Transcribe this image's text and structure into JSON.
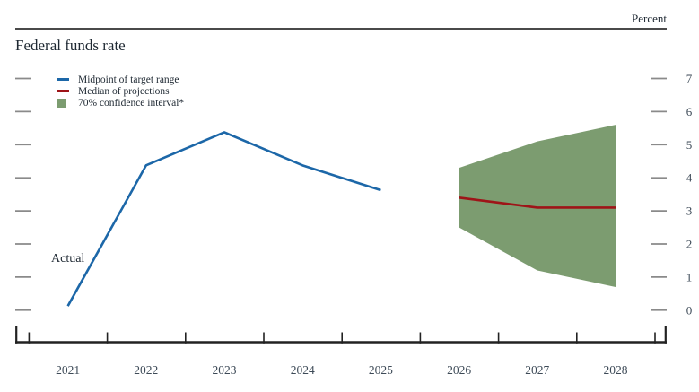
{
  "header": {
    "unit_label": "Percent"
  },
  "chart": {
    "title": "Federal funds rate",
    "annotation_actual": "Actual"
  },
  "legend": [
    {
      "label": "Midpoint of target range",
      "swatch": "line",
      "color": "#1c67a8"
    },
    {
      "label": "Median of projections",
      "swatch": "line",
      "color": "#9e1418"
    },
    {
      "label": "70% confidence interval*",
      "swatch": "box",
      "color": "#7c9c70"
    }
  ],
  "chart_data": {
    "type": "line",
    "title": "Federal funds rate",
    "ylabel": "Percent",
    "ylim": [
      0,
      7
    ],
    "y_ticks": [
      0,
      1,
      2,
      3,
      4,
      5,
      6,
      7
    ],
    "x_years": [
      2021,
      2022,
      2023,
      2024,
      2025,
      2026,
      2027,
      2028
    ],
    "grid": false,
    "legend_position": "top-left",
    "series": [
      {
        "name": "Midpoint of target range",
        "color": "#1c67a8",
        "x": [
          2021,
          2022,
          2023,
          2024,
          2025
        ],
        "values": [
          0.125,
          4.375,
          5.375,
          4.375,
          3.625
        ]
      },
      {
        "name": "Median of projections",
        "color": "#9e1418",
        "x": [
          2026,
          2027,
          2028
        ],
        "values": [
          3.4,
          3.1,
          3.1
        ]
      }
    ],
    "band": {
      "name": "70% confidence interval",
      "color": "#7c9c70",
      "x": [
        2026,
        2027,
        2028
      ],
      "lower": [
        2.5,
        1.2,
        0.7
      ],
      "upper": [
        4.3,
        5.1,
        5.6
      ]
    },
    "axis_colors": {
      "frame_rule": "#4a4a4a",
      "tick_dash": "#8a8a8a",
      "axis_line": "#222222",
      "label": "#3d4a57"
    }
  }
}
